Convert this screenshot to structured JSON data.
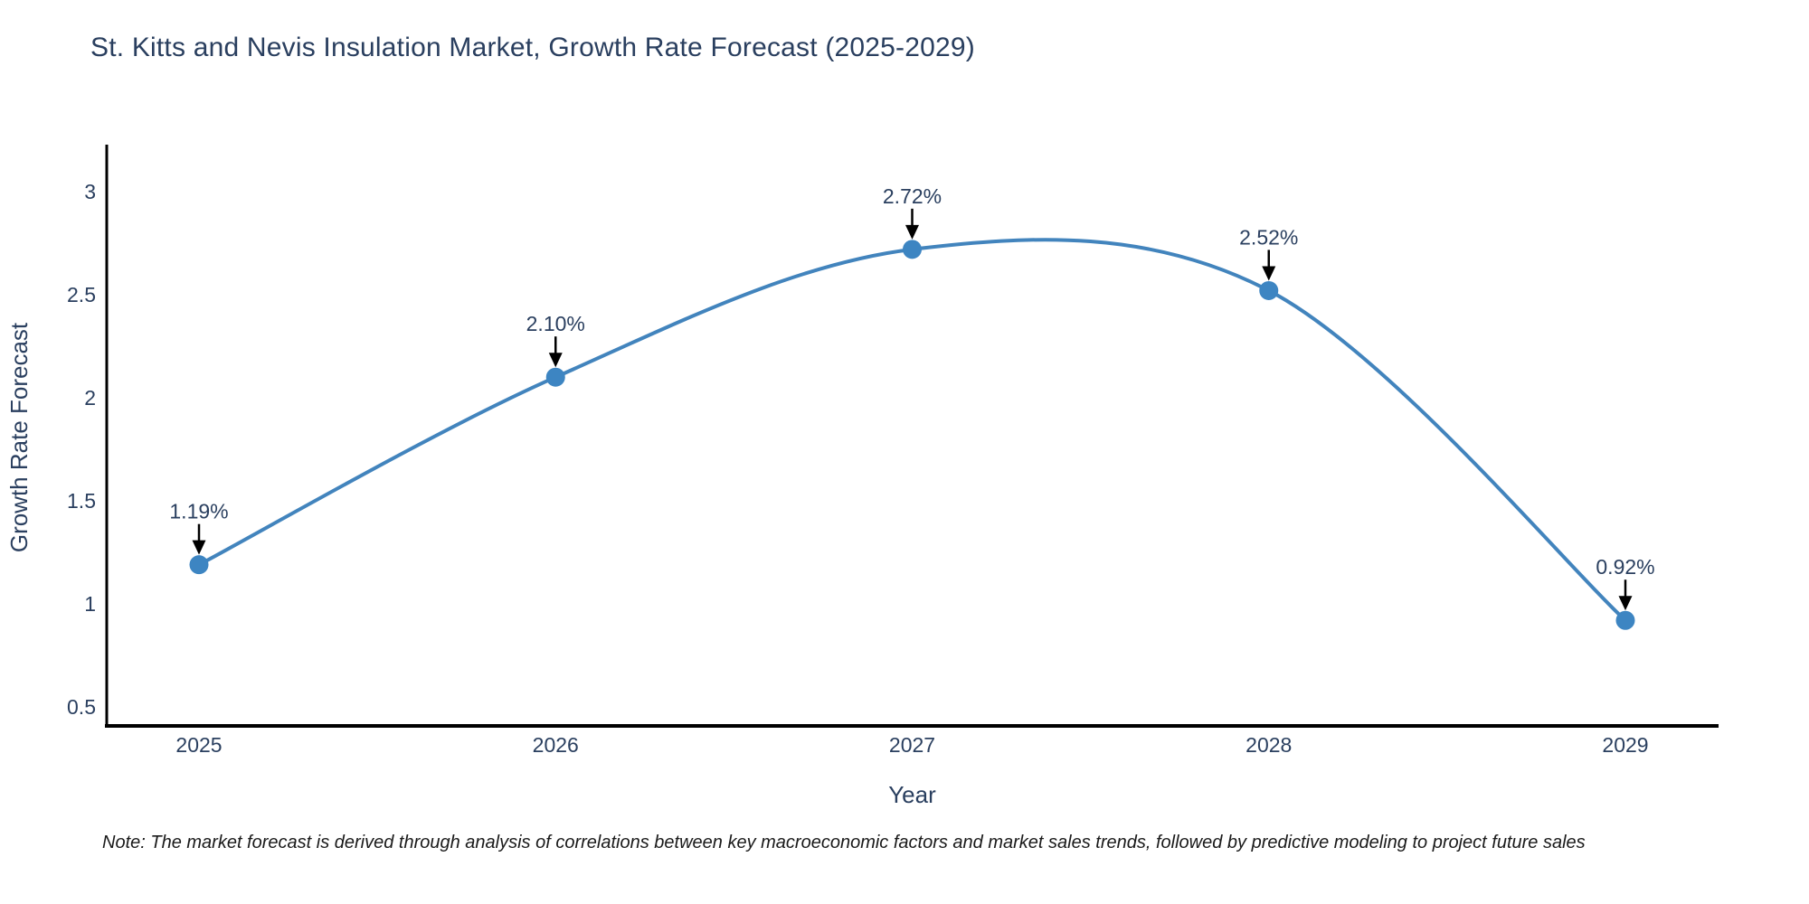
{
  "chart_data": {
    "type": "line",
    "title": "St. Kitts and Nevis Insulation Market, Growth Rate Forecast (2025-2029)",
    "xlabel": "Year",
    "ylabel": "Growth Rate Forecast",
    "x": [
      2025,
      2026,
      2027,
      2028,
      2029
    ],
    "y": [
      1.19,
      2.1,
      2.72,
      2.52,
      0.92
    ],
    "point_labels": [
      "1.19%",
      "2.10%",
      "2.72%",
      "2.52%",
      "0.92%"
    ],
    "xtick_labels": [
      "2025",
      "2026",
      "2027",
      "2028",
      "2029"
    ],
    "yticks": [
      0.5,
      1,
      1.5,
      2,
      2.5,
      3
    ],
    "ytick_labels": [
      "0.5",
      "1",
      "1.5",
      "2",
      "2.5",
      "3"
    ],
    "ylim": [
      0.41,
      3.23
    ],
    "line_shape": "spline",
    "grid": false,
    "legend_position": "none",
    "colors": {
      "line": "#4284bd",
      "marker": "#3d85c2",
      "axis": "#000000",
      "text": "#2a3f5f",
      "annotation_arrow": "#000000"
    }
  },
  "note": "Note: The market forecast is derived through analysis of correlations between key macroeconomic factors and market sales trends, followed by predictive modeling to project future sales"
}
